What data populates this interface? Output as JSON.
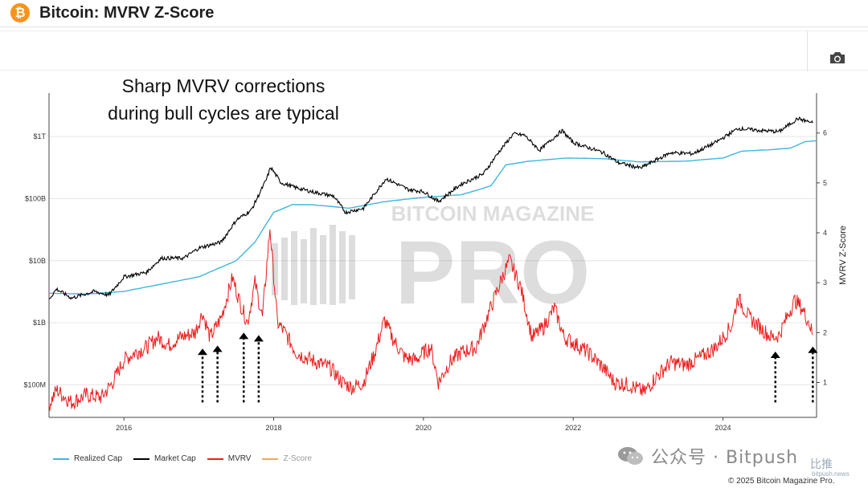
{
  "header": {
    "logo_glyph": "₿",
    "title": "Bitcoin: MVRV Z-Score"
  },
  "toolbar": {
    "camera_icon": "camera-icon"
  },
  "annotation": {
    "line1": "Sharp MVRV corrections",
    "line2": "during bull cycles are typical"
  },
  "watermark": {
    "brand_top": "BITCOIN MAGAZINE",
    "brand_main": "PRO"
  },
  "footer": {
    "wechat_text": "公众号 · Bitpush",
    "bitpush_cn": "比推",
    "bitpush_url": "bitpush.news",
    "copyright": "© 2025 Bitcoin Magazine Pro."
  },
  "colors": {
    "realized": "#3fb6dd",
    "market": "#000000",
    "mvrv": "#ee1c1c",
    "zscore": "#f5a45a",
    "arrow": "#000000"
  },
  "chart_data": {
    "type": "line",
    "title": "Bitcoin: MVRV Z-Score",
    "xlabel": "",
    "ylabel_right": "MVRV Z-Score",
    "x_ticks": [
      "2016",
      "2018",
      "2020",
      "2022",
      "2024"
    ],
    "x_tick_years": [
      2016,
      2018,
      2020,
      2022,
      2024
    ],
    "xlim": [
      2015.0,
      2025.25
    ],
    "left_axis": {
      "scale": "log",
      "ylim": [
        30000000,
        5000000000000
      ],
      "ticks": [
        100000000,
        1000000000,
        10000000000,
        100000000000,
        1000000000000
      ],
      "tick_labels": [
        "$100M",
        "$1B",
        "$10B",
        "$100B",
        "$1T"
      ]
    },
    "right_axis": {
      "ylim": [
        0.3,
        6.8
      ],
      "ticks": [
        1,
        2,
        3,
        4,
        5,
        6
      ],
      "tick_labels": [
        "1",
        "2",
        "3",
        "4",
        "5",
        "6"
      ]
    },
    "legend": [
      {
        "name": "Realized Cap",
        "key": "realized",
        "visible": true
      },
      {
        "name": "Market Cap",
        "key": "market",
        "visible": true
      },
      {
        "name": "MVRV",
        "key": "mvrv",
        "visible": true
      },
      {
        "name": "Z-Score",
        "key": "zscore",
        "visible": false
      }
    ],
    "series": {
      "realized": {
        "name": "Realized Cap",
        "axis": "left",
        "points": [
          [
            2015.0,
            3000000000.0
          ],
          [
            2015.5,
            2900000000.0
          ],
          [
            2016.0,
            3200000000.0
          ],
          [
            2016.5,
            4200000000.0
          ],
          [
            2017.0,
            5500000000.0
          ],
          [
            2017.5,
            10000000000.0
          ],
          [
            2017.75,
            20000000000.0
          ],
          [
            2018.0,
            60000000000.0
          ],
          [
            2018.25,
            80000000000.0
          ],
          [
            2018.5,
            80000000000.0
          ],
          [
            2019.0,
            70000000000.0
          ],
          [
            2019.5,
            90000000000.0
          ],
          [
            2020.0,
            105000000000.0
          ],
          [
            2020.5,
            115000000000.0
          ],
          [
            2020.9,
            160000000000.0
          ],
          [
            2021.1,
            350000000000.0
          ],
          [
            2021.4,
            400000000000.0
          ],
          [
            2021.9,
            450000000000.0
          ],
          [
            2022.4,
            440000000000.0
          ],
          [
            2022.9,
            390000000000.0
          ],
          [
            2023.5,
            400000000000.0
          ],
          [
            2024.0,
            450000000000.0
          ],
          [
            2024.25,
            580000000000.0
          ],
          [
            2024.6,
            610000000000.0
          ],
          [
            2024.9,
            650000000000.0
          ],
          [
            2025.1,
            830000000000.0
          ],
          [
            2025.25,
            850000000000.0
          ]
        ]
      },
      "market": {
        "name": "Market Cap",
        "axis": "left",
        "points": [
          [
            2015.0,
            2400000000.0
          ],
          [
            2015.1,
            3500000000.0
          ],
          [
            2015.3,
            2500000000.0
          ],
          [
            2015.6,
            3200000000.0
          ],
          [
            2015.8,
            2800000000.0
          ],
          [
            2016.0,
            5500000000.0
          ],
          [
            2016.3,
            6500000000.0
          ],
          [
            2016.5,
            11000000000.0
          ],
          [
            2016.8,
            11000000000.0
          ],
          [
            2017.0,
            16000000000.0
          ],
          [
            2017.3,
            20000000000.0
          ],
          [
            2017.5,
            45000000000.0
          ],
          [
            2017.7,
            65000000000.0
          ],
          [
            2017.9,
            200000000000.0
          ],
          [
            2017.96,
            320000000000.0
          ],
          [
            2018.1,
            180000000000.0
          ],
          [
            2018.3,
            150000000000.0
          ],
          [
            2018.5,
            130000000000.0
          ],
          [
            2018.8,
            110000000000.0
          ],
          [
            2018.96,
            60000000000.0
          ],
          [
            2019.2,
            70000000000.0
          ],
          [
            2019.5,
            210000000000.0
          ],
          [
            2019.8,
            140000000000.0
          ],
          [
            2020.0,
            130000000000.0
          ],
          [
            2020.2,
            90000000000.0
          ],
          [
            2020.5,
            170000000000.0
          ],
          [
            2020.8,
            250000000000.0
          ],
          [
            2021.0,
            550000000000.0
          ],
          [
            2021.2,
            1100000000000.0
          ],
          [
            2021.35,
            1050000000000.0
          ],
          [
            2021.55,
            600000000000.0
          ],
          [
            2021.85,
            1250000000000.0
          ],
          [
            2022.0,
            800000000000.0
          ],
          [
            2022.4,
            550000000000.0
          ],
          [
            2022.6,
            380000000000.0
          ],
          [
            2022.9,
            310000000000.0
          ],
          [
            2023.0,
            360000000000.0
          ],
          [
            2023.3,
            550000000000.0
          ],
          [
            2023.6,
            530000000000.0
          ],
          [
            2023.9,
            800000000000.0
          ],
          [
            2024.2,
            1350000000000.0
          ],
          [
            2024.5,
            1250000000000.0
          ],
          [
            2024.75,
            1200000000000.0
          ],
          [
            2025.0,
            1950000000000.0
          ],
          [
            2025.2,
            1650000000000.0
          ]
        ]
      },
      "mvrv": {
        "name": "MVRV",
        "axis": "right",
        "points": [
          [
            2015.0,
            0.55
          ],
          [
            2015.1,
            0.85
          ],
          [
            2015.3,
            0.6
          ],
          [
            2015.5,
            0.75
          ],
          [
            2015.7,
            0.7
          ],
          [
            2015.85,
            1.0
          ],
          [
            2016.0,
            1.45
          ],
          [
            2016.15,
            1.6
          ],
          [
            2016.3,
            1.7
          ],
          [
            2016.45,
            1.9
          ],
          [
            2016.6,
            1.75
          ],
          [
            2016.75,
            1.9
          ],
          [
            2016.95,
            2.0
          ],
          [
            2017.05,
            2.4
          ],
          [
            2017.15,
            1.9
          ],
          [
            2017.3,
            2.3
          ],
          [
            2017.45,
            3.1
          ],
          [
            2017.55,
            2.6
          ],
          [
            2017.65,
            2.2
          ],
          [
            2017.75,
            3.0
          ],
          [
            2017.85,
            2.3
          ],
          [
            2017.95,
            4.1
          ],
          [
            2018.05,
            2.2
          ],
          [
            2018.15,
            2.0
          ],
          [
            2018.3,
            1.6
          ],
          [
            2018.5,
            1.45
          ],
          [
            2018.75,
            1.3
          ],
          [
            2018.92,
            1.0
          ],
          [
            2019.05,
            0.9
          ],
          [
            2019.2,
            1.0
          ],
          [
            2019.35,
            1.6
          ],
          [
            2019.48,
            2.25
          ],
          [
            2019.6,
            1.85
          ],
          [
            2019.75,
            1.5
          ],
          [
            2019.9,
            1.45
          ],
          [
            2020.0,
            1.6
          ],
          [
            2020.1,
            1.7
          ],
          [
            2020.2,
            1.0
          ],
          [
            2020.35,
            1.4
          ],
          [
            2020.5,
            1.6
          ],
          [
            2020.7,
            1.7
          ],
          [
            2020.9,
            2.5
          ],
          [
            2021.05,
            3.1
          ],
          [
            2021.15,
            3.45
          ],
          [
            2021.3,
            2.9
          ],
          [
            2021.45,
            1.9
          ],
          [
            2021.6,
            2.1
          ],
          [
            2021.75,
            2.5
          ],
          [
            2021.88,
            1.9
          ],
          [
            2022.0,
            1.8
          ],
          [
            2022.2,
            1.6
          ],
          [
            2022.4,
            1.3
          ],
          [
            2022.55,
            1.0
          ],
          [
            2022.75,
            0.95
          ],
          [
            2022.95,
            0.8
          ],
          [
            2023.1,
            1.1
          ],
          [
            2023.3,
            1.4
          ],
          [
            2023.5,
            1.35
          ],
          [
            2023.7,
            1.5
          ],
          [
            2023.9,
            1.7
          ],
          [
            2024.0,
            1.9
          ],
          [
            2024.12,
            2.15
          ],
          [
            2024.2,
            2.7
          ],
          [
            2024.35,
            2.3
          ],
          [
            2024.5,
            2.1
          ],
          [
            2024.65,
            1.9
          ],
          [
            2024.75,
            1.95
          ],
          [
            2024.88,
            2.4
          ],
          [
            2024.96,
            2.65
          ],
          [
            2025.05,
            2.5
          ],
          [
            2025.15,
            2.2
          ],
          [
            2025.2,
            1.95
          ]
        ]
      }
    },
    "annotation_arrows": [
      {
        "x": 2017.05,
        "from": 0.6,
        "to": 1.68
      },
      {
        "x": 2017.25,
        "from": 0.6,
        "to": 1.74
      },
      {
        "x": 2017.6,
        "from": 0.6,
        "to": 2.0
      },
      {
        "x": 2017.8,
        "from": 0.6,
        "to": 1.95
      },
      {
        "x": 2024.7,
        "from": 0.6,
        "to": 1.62
      },
      {
        "x": 2025.2,
        "from": 0.6,
        "to": 1.72
      }
    ]
  }
}
